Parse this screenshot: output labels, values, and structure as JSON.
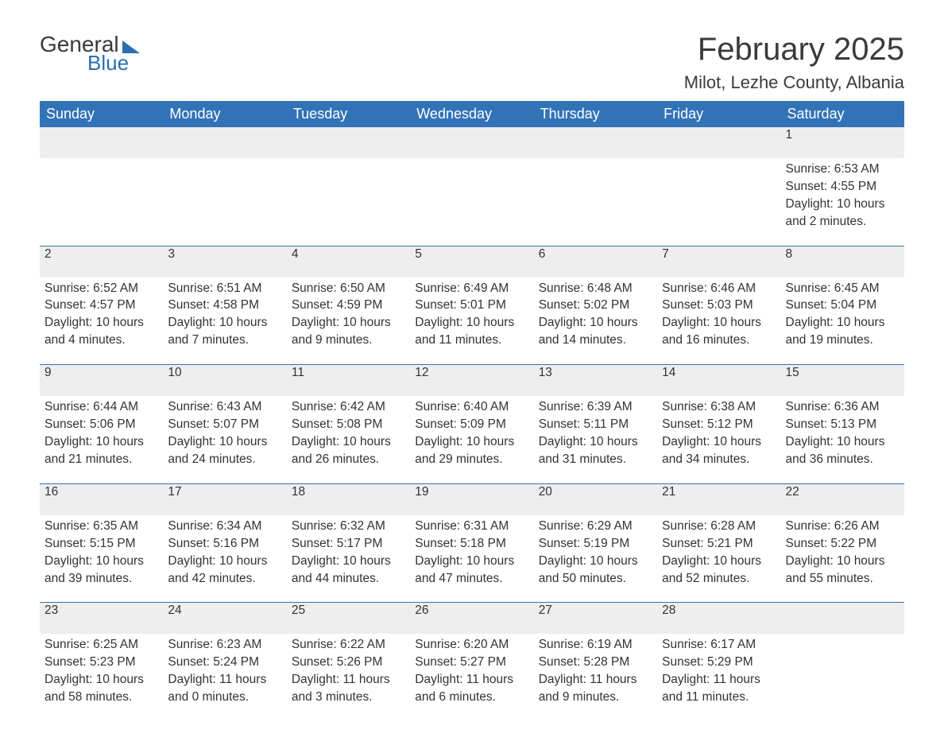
{
  "brand": {
    "word1": "General",
    "word2": "Blue"
  },
  "title": "February 2025",
  "location": "Milot, Lezhe County, Albania",
  "colors": {
    "header_bg": "#3273b7",
    "header_text": "#ffffff",
    "daynum_bg": "#eeeeee",
    "body_text": "#333333",
    "accent": "#2b6fb0",
    "page_bg": "#ffffff"
  },
  "fonts": {
    "title_size_pt": 40,
    "location_size_pt": 22,
    "header_size_pt": 18,
    "body_size_pt": 15.5
  },
  "day_headers": [
    "Sunday",
    "Monday",
    "Tuesday",
    "Wednesday",
    "Thursday",
    "Friday",
    "Saturday"
  ],
  "weeks": [
    [
      null,
      null,
      null,
      null,
      null,
      null,
      {
        "n": "1",
        "sunrise": "Sunrise: 6:53 AM",
        "sunset": "Sunset: 4:55 PM",
        "dl1": "Daylight: 10 hours",
        "dl2": "and 2 minutes."
      }
    ],
    [
      {
        "n": "2",
        "sunrise": "Sunrise: 6:52 AM",
        "sunset": "Sunset: 4:57 PM",
        "dl1": "Daylight: 10 hours",
        "dl2": "and 4 minutes."
      },
      {
        "n": "3",
        "sunrise": "Sunrise: 6:51 AM",
        "sunset": "Sunset: 4:58 PM",
        "dl1": "Daylight: 10 hours",
        "dl2": "and 7 minutes."
      },
      {
        "n": "4",
        "sunrise": "Sunrise: 6:50 AM",
        "sunset": "Sunset: 4:59 PM",
        "dl1": "Daylight: 10 hours",
        "dl2": "and 9 minutes."
      },
      {
        "n": "5",
        "sunrise": "Sunrise: 6:49 AM",
        "sunset": "Sunset: 5:01 PM",
        "dl1": "Daylight: 10 hours",
        "dl2": "and 11 minutes."
      },
      {
        "n": "6",
        "sunrise": "Sunrise: 6:48 AM",
        "sunset": "Sunset: 5:02 PM",
        "dl1": "Daylight: 10 hours",
        "dl2": "and 14 minutes."
      },
      {
        "n": "7",
        "sunrise": "Sunrise: 6:46 AM",
        "sunset": "Sunset: 5:03 PM",
        "dl1": "Daylight: 10 hours",
        "dl2": "and 16 minutes."
      },
      {
        "n": "8",
        "sunrise": "Sunrise: 6:45 AM",
        "sunset": "Sunset: 5:04 PM",
        "dl1": "Daylight: 10 hours",
        "dl2": "and 19 minutes."
      }
    ],
    [
      {
        "n": "9",
        "sunrise": "Sunrise: 6:44 AM",
        "sunset": "Sunset: 5:06 PM",
        "dl1": "Daylight: 10 hours",
        "dl2": "and 21 minutes."
      },
      {
        "n": "10",
        "sunrise": "Sunrise: 6:43 AM",
        "sunset": "Sunset: 5:07 PM",
        "dl1": "Daylight: 10 hours",
        "dl2": "and 24 minutes."
      },
      {
        "n": "11",
        "sunrise": "Sunrise: 6:42 AM",
        "sunset": "Sunset: 5:08 PM",
        "dl1": "Daylight: 10 hours",
        "dl2": "and 26 minutes."
      },
      {
        "n": "12",
        "sunrise": "Sunrise: 6:40 AM",
        "sunset": "Sunset: 5:09 PM",
        "dl1": "Daylight: 10 hours",
        "dl2": "and 29 minutes."
      },
      {
        "n": "13",
        "sunrise": "Sunrise: 6:39 AM",
        "sunset": "Sunset: 5:11 PM",
        "dl1": "Daylight: 10 hours",
        "dl2": "and 31 minutes."
      },
      {
        "n": "14",
        "sunrise": "Sunrise: 6:38 AM",
        "sunset": "Sunset: 5:12 PM",
        "dl1": "Daylight: 10 hours",
        "dl2": "and 34 minutes."
      },
      {
        "n": "15",
        "sunrise": "Sunrise: 6:36 AM",
        "sunset": "Sunset: 5:13 PM",
        "dl1": "Daylight: 10 hours",
        "dl2": "and 36 minutes."
      }
    ],
    [
      {
        "n": "16",
        "sunrise": "Sunrise: 6:35 AM",
        "sunset": "Sunset: 5:15 PM",
        "dl1": "Daylight: 10 hours",
        "dl2": "and 39 minutes."
      },
      {
        "n": "17",
        "sunrise": "Sunrise: 6:34 AM",
        "sunset": "Sunset: 5:16 PM",
        "dl1": "Daylight: 10 hours",
        "dl2": "and 42 minutes."
      },
      {
        "n": "18",
        "sunrise": "Sunrise: 6:32 AM",
        "sunset": "Sunset: 5:17 PM",
        "dl1": "Daylight: 10 hours",
        "dl2": "and 44 minutes."
      },
      {
        "n": "19",
        "sunrise": "Sunrise: 6:31 AM",
        "sunset": "Sunset: 5:18 PM",
        "dl1": "Daylight: 10 hours",
        "dl2": "and 47 minutes."
      },
      {
        "n": "20",
        "sunrise": "Sunrise: 6:29 AM",
        "sunset": "Sunset: 5:19 PM",
        "dl1": "Daylight: 10 hours",
        "dl2": "and 50 minutes."
      },
      {
        "n": "21",
        "sunrise": "Sunrise: 6:28 AM",
        "sunset": "Sunset: 5:21 PM",
        "dl1": "Daylight: 10 hours",
        "dl2": "and 52 minutes."
      },
      {
        "n": "22",
        "sunrise": "Sunrise: 6:26 AM",
        "sunset": "Sunset: 5:22 PM",
        "dl1": "Daylight: 10 hours",
        "dl2": "and 55 minutes."
      }
    ],
    [
      {
        "n": "23",
        "sunrise": "Sunrise: 6:25 AM",
        "sunset": "Sunset: 5:23 PM",
        "dl1": "Daylight: 10 hours",
        "dl2": "and 58 minutes."
      },
      {
        "n": "24",
        "sunrise": "Sunrise: 6:23 AM",
        "sunset": "Sunset: 5:24 PM",
        "dl1": "Daylight: 11 hours",
        "dl2": "and 0 minutes."
      },
      {
        "n": "25",
        "sunrise": "Sunrise: 6:22 AM",
        "sunset": "Sunset: 5:26 PM",
        "dl1": "Daylight: 11 hours",
        "dl2": "and 3 minutes."
      },
      {
        "n": "26",
        "sunrise": "Sunrise: 6:20 AM",
        "sunset": "Sunset: 5:27 PM",
        "dl1": "Daylight: 11 hours",
        "dl2": "and 6 minutes."
      },
      {
        "n": "27",
        "sunrise": "Sunrise: 6:19 AM",
        "sunset": "Sunset: 5:28 PM",
        "dl1": "Daylight: 11 hours",
        "dl2": "and 9 minutes."
      },
      {
        "n": "28",
        "sunrise": "Sunrise: 6:17 AM",
        "sunset": "Sunset: 5:29 PM",
        "dl1": "Daylight: 11 hours",
        "dl2": "and 11 minutes."
      },
      null
    ]
  ]
}
